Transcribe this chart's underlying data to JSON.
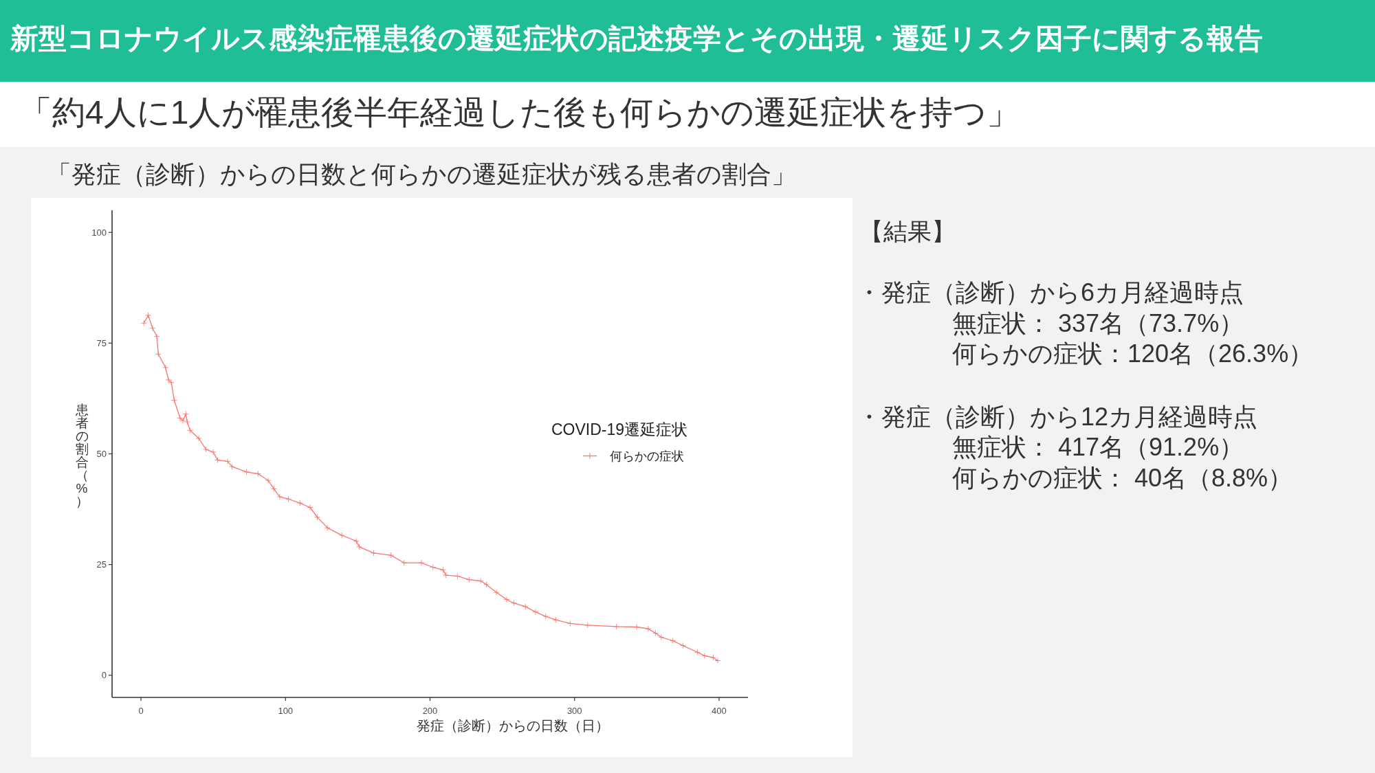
{
  "chart_data": {
    "type": "line",
    "title": "新型コロナウイルス感染症罹患後の遷延症状の記述疫学とその出現・遷延リスク因子に関する報告",
    "subtitle": "「約4人に1人が罹患後半年経過した後も何らかの遷延症状を持つ」",
    "xlabel": "発症（診断）からの日数（日）",
    "ylabel": "患者の割合（%）",
    "legend_title": "COVID-19遷延症状",
    "annotations": [
      "「発症（診断）からの日数と何らかの遷延症状が残る患者の割合」",
      "【結果】",
      "・発症（診断）から6カ月経過時点",
      "無症状： 337名（73.7%）",
      "何らかの症状：120名（26.3%）",
      "・発症（診断）から12カ月経過時点",
      "無症状： 417名（91.2%）",
      "何らかの症状： 40名（8.8%）"
    ],
    "x": [
      2,
      5,
      8,
      11,
      12,
      17,
      19,
      21,
      23,
      27,
      29,
      31,
      32,
      34,
      40,
      45,
      50,
      53,
      60,
      63,
      73,
      81,
      88,
      92,
      96,
      102,
      110,
      117,
      122,
      129,
      139,
      149,
      151,
      161,
      173,
      182,
      194,
      202,
      209,
      211,
      219,
      227,
      235,
      239,
      246,
      253,
      258,
      266,
      273,
      280,
      287,
      297,
      309,
      329,
      343,
      351,
      356,
      360,
      368,
      375,
      385,
      390,
      396,
      399
    ],
    "series": [
      {
        "name": "何らかの症状",
        "color": "#f8766d",
        "values": [
          79.5,
          81.3,
          78.4,
          76.5,
          72.5,
          69.5,
          66.7,
          66.1,
          62.1,
          58.1,
          57.5,
          59.0,
          57.2,
          55.3,
          53.5,
          51.0,
          50.4,
          48.6,
          48.3,
          47.1,
          45.9,
          45.5,
          44.0,
          42.1,
          40.3,
          39.8,
          38.9,
          37.9,
          35.7,
          33.3,
          31.6,
          30.3,
          29.0,
          27.6,
          27.1,
          25.4,
          25.4,
          24.4,
          23.8,
          22.6,
          22.4,
          21.6,
          21.3,
          20.5,
          18.7,
          17.1,
          16.3,
          15.5,
          14.3,
          13.3,
          12.5,
          11.7,
          11.3,
          11.0,
          10.9,
          10.5,
          9.5,
          8.6,
          7.8,
          6.7,
          5.2,
          4.4,
          4.0,
          3.3
        ]
      }
    ],
    "xlim": [
      -20,
      420
    ],
    "ylim": [
      -5,
      105
    ],
    "xticks": [
      0,
      100,
      200,
      300,
      400
    ],
    "yticks": [
      0,
      25,
      50,
      75,
      100
    ],
    "legend": "right",
    "marker": "cross",
    "line_style": "solid"
  }
}
